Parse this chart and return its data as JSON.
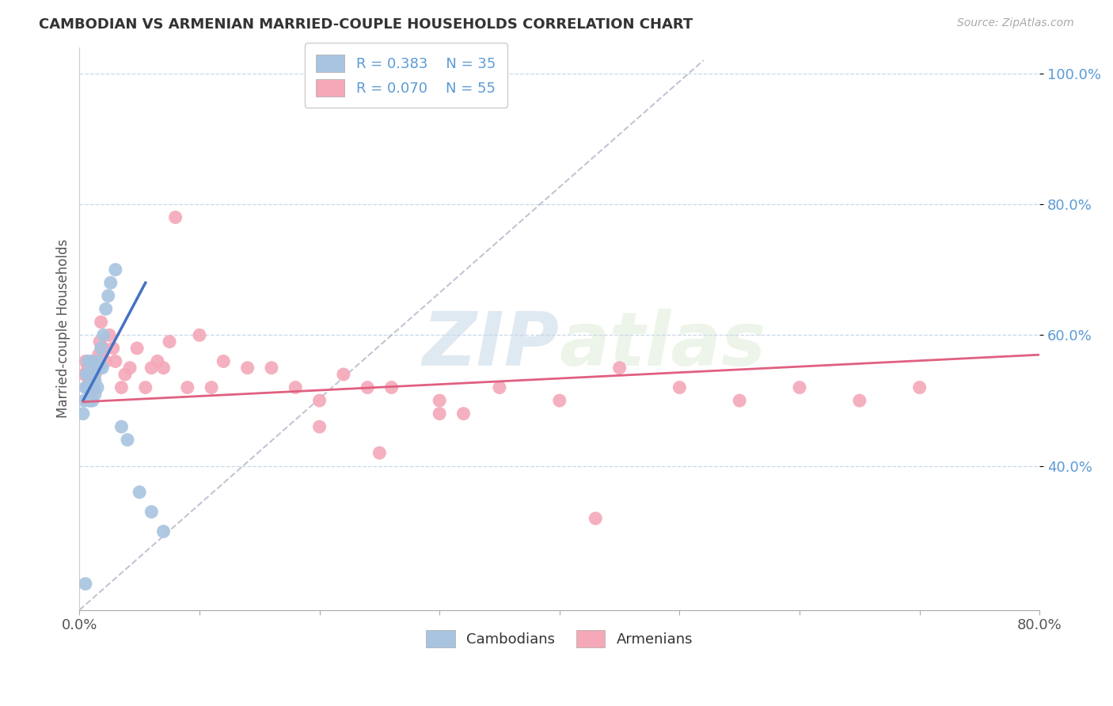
{
  "title": "CAMBODIAN VS ARMENIAN MARRIED-COUPLE HOUSEHOLDS CORRELATION CHART",
  "source": "Source: ZipAtlas.com",
  "ylabel": "Married-couple Households",
  "xlabel": "",
  "xlim": [
    0.0,
    0.8
  ],
  "ylim": [
    0.18,
    1.04
  ],
  "yticks": [
    0.4,
    0.6,
    0.8,
    1.0
  ],
  "ytick_labels": [
    "40.0%",
    "60.0%",
    "80.0%",
    "100.0%"
  ],
  "xticks": [
    0.0,
    0.1,
    0.2,
    0.3,
    0.4,
    0.5,
    0.6,
    0.7,
    0.8
  ],
  "xtick_labels": [
    "0.0%",
    "",
    "",
    "",
    "",
    "",
    "",
    "",
    "80.0%"
  ],
  "cambodian_color": "#a8c4e0",
  "armenian_color": "#f4a8b8",
  "cambodian_line_color": "#4472c4",
  "armenian_line_color": "#e06080",
  "diagonal_line_color": "#b0b8c8",
  "R_cambodian": 0.383,
  "N_cambodian": 35,
  "R_armenian": 0.07,
  "N_armenian": 55,
  "watermark_zip": "ZIP",
  "watermark_atlas": "atlas",
  "cambodian_x": [
    0.003,
    0.004,
    0.005,
    0.006,
    0.007,
    0.007,
    0.008,
    0.008,
    0.009,
    0.009,
    0.01,
    0.01,
    0.011,
    0.011,
    0.012,
    0.012,
    0.013,
    0.013,
    0.014,
    0.015,
    0.016,
    0.017,
    0.018,
    0.019,
    0.02,
    0.022,
    0.024,
    0.026,
    0.03,
    0.035,
    0.04,
    0.05,
    0.06,
    0.07,
    0.005
  ],
  "cambodian_y": [
    0.48,
    0.5,
    0.52,
    0.54,
    0.52,
    0.56,
    0.5,
    0.54,
    0.52,
    0.5,
    0.52,
    0.56,
    0.5,
    0.53,
    0.52,
    0.54,
    0.51,
    0.53,
    0.55,
    0.52,
    0.56,
    0.55,
    0.58,
    0.55,
    0.6,
    0.64,
    0.66,
    0.68,
    0.7,
    0.46,
    0.44,
    0.36,
    0.33,
    0.3,
    0.22
  ],
  "armenian_x": [
    0.004,
    0.005,
    0.006,
    0.007,
    0.008,
    0.009,
    0.01,
    0.011,
    0.012,
    0.013,
    0.014,
    0.015,
    0.016,
    0.017,
    0.018,
    0.02,
    0.022,
    0.025,
    0.028,
    0.03,
    0.035,
    0.038,
    0.042,
    0.048,
    0.055,
    0.06,
    0.065,
    0.07,
    0.075,
    0.08,
    0.09,
    0.1,
    0.11,
    0.12,
    0.14,
    0.16,
    0.18,
    0.2,
    0.22,
    0.24,
    0.26,
    0.3,
    0.35,
    0.4,
    0.45,
    0.5,
    0.55,
    0.6,
    0.65,
    0.7,
    0.3,
    0.2,
    0.25,
    0.32,
    0.43
  ],
  "armenian_y": [
    0.54,
    0.56,
    0.52,
    0.55,
    0.53,
    0.52,
    0.55,
    0.54,
    0.52,
    0.54,
    0.56,
    0.55,
    0.57,
    0.59,
    0.62,
    0.58,
    0.56,
    0.6,
    0.58,
    0.56,
    0.52,
    0.54,
    0.55,
    0.58,
    0.52,
    0.55,
    0.56,
    0.55,
    0.59,
    0.78,
    0.52,
    0.6,
    0.52,
    0.56,
    0.55,
    0.55,
    0.52,
    0.5,
    0.54,
    0.52,
    0.52,
    0.5,
    0.52,
    0.5,
    0.55,
    0.52,
    0.5,
    0.52,
    0.5,
    0.52,
    0.48,
    0.46,
    0.42,
    0.48,
    0.32
  ]
}
